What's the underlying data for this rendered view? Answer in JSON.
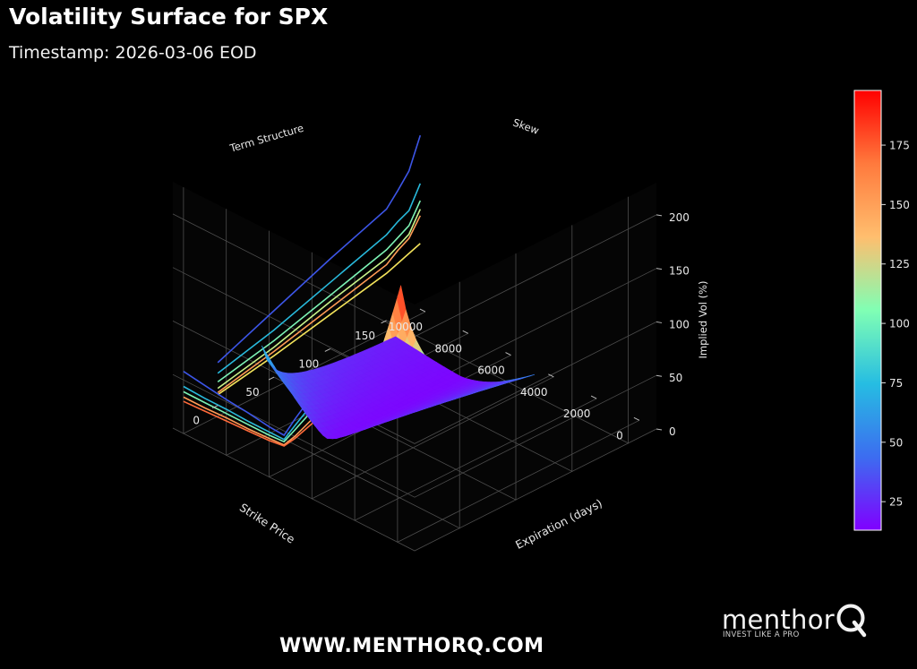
{
  "header": {
    "title": "Volatility Surface for SPX",
    "subtitle": "Timestamp: 2026-03-06 EOD"
  },
  "footer": {
    "website": "WWW.MENTHORQ.COM",
    "brand_name": "menthor",
    "brand_tagline": "INVEST LIKE A PRO"
  },
  "chart_data": {
    "type": "surface",
    "title": "",
    "xlabel": "Strike Price",
    "ylabel": "Expiration (days)",
    "zlabel": "Implied Vol (%)",
    "x_ticks": [
      "0",
      "2000",
      "4000",
      "6000",
      "8000",
      "10000"
    ],
    "y_ticks": [
      "0",
      "50",
      "100",
      "150"
    ],
    "z_ticks": [
      "0",
      "50",
      "100",
      "150",
      "200"
    ],
    "xlim": [
      -800,
      10500
    ],
    "ylim": [
      -40,
      175
    ],
    "zlim": [
      0,
      230
    ],
    "panel_labels": [
      "Term Structure",
      "Skew"
    ],
    "colormap": "rainbow",
    "colorbar_ticks": [
      "25",
      "50",
      "75",
      "100",
      "125",
      "150",
      "175"
    ],
    "colorbar_range": [
      13,
      198
    ],
    "colorbar_colors": [
      "#8000ff",
      "#3c6df0",
      "#26bde2",
      "#80ffb4",
      "#ffbe6e",
      "#ff7a3d",
      "#ff0000"
    ],
    "surface_strike_range": [
      2000,
      8500
    ],
    "surface_expiry_range": [
      1,
      120
    ],
    "peak_iv": 198,
    "term_structure_series": [
      {
        "color": "#3c55e6",
        "points": [
          [
            0,
            40
          ],
          [
            50,
            62
          ],
          [
            100,
            84
          ],
          [
            150,
            104
          ],
          [
            160,
            116
          ],
          [
            170,
            129
          ],
          [
            180,
            157
          ]
        ]
      },
      {
        "color": "#28b9dc",
        "points": [
          [
            0,
            30
          ],
          [
            50,
            44
          ],
          [
            100,
            62
          ],
          [
            150,
            80
          ],
          [
            160,
            87
          ],
          [
            170,
            92
          ],
          [
            180,
            112
          ]
        ]
      },
      {
        "color": "#7cf2b4",
        "points": [
          [
            0,
            22
          ],
          [
            50,
            34
          ],
          [
            100,
            50
          ],
          [
            150,
            66
          ],
          [
            160,
            72
          ],
          [
            170,
            78
          ],
          [
            180,
            96
          ]
        ]
      },
      {
        "color": "#c8f38a",
        "points": [
          [
            0,
            16
          ],
          [
            50,
            28
          ],
          [
            100,
            44
          ],
          [
            150,
            58
          ],
          [
            160,
            64
          ],
          [
            170,
            70
          ],
          [
            180,
            88
          ]
        ]
      },
      {
        "color": "#ff9b55",
        "points": [
          [
            0,
            12
          ],
          [
            50,
            24
          ],
          [
            100,
            38
          ],
          [
            150,
            52
          ],
          [
            160,
            60
          ],
          [
            170,
            66
          ],
          [
            180,
            82
          ]
        ]
      },
      {
        "color": "#f2e25a",
        "points": [
          [
            0,
            10
          ],
          [
            50,
            20
          ],
          [
            100,
            32
          ],
          [
            150,
            44
          ],
          [
            160,
            48
          ],
          [
            170,
            52
          ],
          [
            180,
            56
          ]
        ]
      }
    ],
    "skew_series": [
      {
        "color": "#3c55e6",
        "points": [
          [
            2000,
            154
          ],
          [
            3000,
            126
          ],
          [
            4000,
            96
          ],
          [
            4800,
            66
          ],
          [
            5300,
            46
          ],
          [
            6000,
            47
          ],
          [
            7000,
            50
          ],
          [
            8000,
            52
          ],
          [
            9000,
            55
          ],
          [
            10000,
            58
          ]
        ]
      },
      {
        "color": "#28b9dc",
        "points": [
          [
            2000,
            144
          ],
          [
            3000,
            116
          ],
          [
            4000,
            88
          ],
          [
            4800,
            60
          ],
          [
            5300,
            42
          ],
          [
            6000,
            42
          ],
          [
            7000,
            42
          ],
          [
            8000,
            43
          ],
          [
            9000,
            43
          ],
          [
            10000,
            44
          ]
        ]
      },
      {
        "color": "#7cf2b4",
        "points": [
          [
            2000,
            134
          ],
          [
            3000,
            108
          ],
          [
            4000,
            82
          ],
          [
            4800,
            56
          ],
          [
            5300,
            40
          ],
          [
            6000,
            39
          ],
          [
            7000,
            39
          ],
          [
            8000,
            39
          ],
          [
            9000,
            39
          ],
          [
            10000,
            39
          ]
        ]
      },
      {
        "color": "#ff9b55",
        "points": [
          [
            2000,
            126
          ],
          [
            3000,
            100
          ],
          [
            4000,
            74
          ],
          [
            4800,
            50
          ],
          [
            5300,
            37
          ],
          [
            6000,
            36
          ],
          [
            7000,
            35
          ],
          [
            8000,
            35
          ],
          [
            9000,
            34
          ],
          [
            10000,
            34
          ]
        ]
      },
      {
        "color": "#ff6a3a",
        "points": [
          [
            2000,
            120
          ],
          [
            3000,
            96
          ],
          [
            4000,
            70
          ],
          [
            4800,
            48
          ],
          [
            5300,
            36
          ],
          [
            6000,
            34
          ],
          [
            7000,
            33
          ],
          [
            8000,
            32
          ],
          [
            9000,
            31
          ],
          [
            10000,
            30
          ]
        ]
      }
    ]
  }
}
